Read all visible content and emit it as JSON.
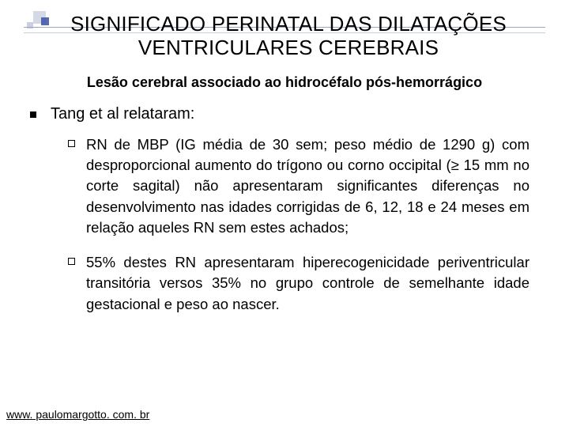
{
  "slide": {
    "title_line1": "SIGNIFICADO PERINATAL DAS DILATAÇÕES",
    "title_line2": "VENTRICULARES CEREBRAIS",
    "subtitle": "Lesão cerebral associado ao hidrocéfalo pós-hemorrágico",
    "main_bullet": "Tang et al relataram:",
    "sub_bullets": [
      "RN de MBP (IG média de 30 sem; peso médio de 1290 g) com desproporcional aumento do trígono ou corno occipital (≥ 15 mm no corte sagital) não apresentaram significantes diferenças no desenvolvimento nas idades corrigidas de 6, 12, 18 e 24 meses em relação aqueles RN sem estes achados;",
      "55% destes RN apresentaram hiperecogenicidade periventricular transitória versos 35% no grupo controle de semelhante idade gestacional  e peso ao nascer."
    ],
    "footer": "www. paulomargotto. com. br"
  },
  "style": {
    "background": "#ffffff",
    "title_color": "#000000",
    "title_fontsize": 26,
    "subtitle_fontsize": 18,
    "subtitle_weight": "bold",
    "body_fontsize": 20,
    "sub_body_fontsize": 18.5,
    "text_color": "#000000",
    "deco_colors": {
      "light": "rgba(160,170,200,0.45)",
      "dark": "rgba(60,80,160,0.85)",
      "line": "#9aa4c2"
    },
    "footer_fontsize": 14,
    "footer_underline": true,
    "text_align_sub": "justify",
    "line_height_sub": 1.42
  }
}
